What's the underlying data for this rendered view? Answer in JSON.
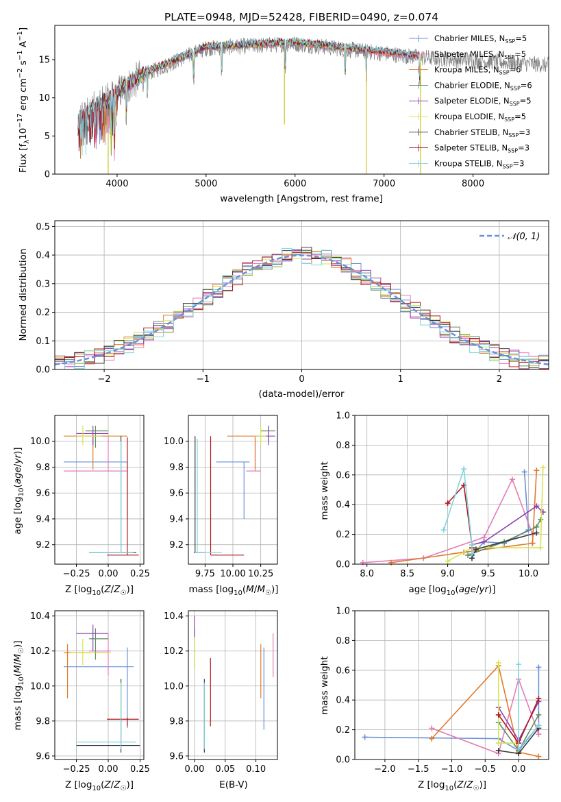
{
  "figure": {
    "title": "PLATE=0948, MJD=52428, FIBERID=0490, z=0.074"
  },
  "chart_data": [
    {
      "id": "spectrum",
      "type": "line",
      "title": "PLATE=0948, MJD=52428, FIBERID=0490, z=0.074",
      "xlabel": "wavelength [Angstrom, rest frame]",
      "ylabel": "Flux [f_λ10^-17 erg cm^-2 s^-1 A^-1]",
      "xlim": [
        3300,
        8850
      ],
      "ylim": [
        0,
        19.5
      ],
      "xticks": [
        4000,
        5000,
        6000,
        7000,
        8000
      ],
      "yticks": [
        0,
        5,
        10,
        15
      ],
      "legend_position": "top-right",
      "series": [
        {
          "name": "Chabrier MILES, N_SSP=5",
          "color": "#6a8fd8",
          "x0": 3560,
          "x1": 7400
        },
        {
          "name": "Salpeter MILES, N_SSP=5",
          "color": "#e47cb6",
          "x0": 3560,
          "x1": 7400
        },
        {
          "name": "Kroupa MILES, N_SSP=6",
          "color": "#e07a2a",
          "x0": 3560,
          "x1": 7400
        },
        {
          "name": "Chabrier ELODIE, N_SSP=6",
          "color": "#5d8c62",
          "x0": 3900,
          "x1": 6800
        },
        {
          "name": "Salpeter ELODIE, N_SSP=5",
          "color": "#8e3fb0",
          "x0": 3900,
          "x1": 6800
        },
        {
          "name": "Kroupa ELODIE, N_SSP=5",
          "color": "#d6e44e",
          "x0": 3900,
          "x1": 6800
        },
        {
          "name": "Chabrier STELIB, N_SSP=3",
          "color": "#3a3a3a",
          "x0": 3560,
          "x1": 7400
        },
        {
          "name": "Salpeter STELIB, N_SSP=3",
          "color": "#b0161c",
          "x0": 3560,
          "x1": 7400
        },
        {
          "name": "Kroupa STELIB, N_SSP=3",
          "color": "#7fd4e0",
          "x0": 3560,
          "x1": 7400
        }
      ],
      "observed_color": "#808080",
      "observed_range": [
        3560,
        8850
      ]
    },
    {
      "id": "residuals",
      "type": "line",
      "xlabel": "(data-model)/error",
      "ylabel": "Normed distribution",
      "xlim": [
        -2.5,
        2.5
      ],
      "ylim": [
        0,
        0.52
      ],
      "xticks": [
        -2,
        -1,
        0,
        1,
        2
      ],
      "yticks": [
        0.0,
        0.1,
        0.2,
        0.3,
        0.4,
        0.5
      ],
      "grid": true,
      "legend": [
        "𝒩(0, 1)"
      ],
      "legend_position": "top-right",
      "bin_width": 0.1
    },
    {
      "id": "age_vs_Z",
      "type": "scatter",
      "xlabel": "Z [log10(Z/Z☉)]",
      "ylabel": "age [log10(age/yr)]",
      "xlim": [
        -0.42,
        0.28
      ],
      "ylim": [
        9.05,
        10.2
      ],
      "xticks": [
        -0.25,
        0.0,
        0.25
      ],
      "xticklabels": [
        "−0.25",
        "0.00",
        "0.25"
      ],
      "yticks": [
        9.2,
        9.4,
        9.6,
        9.8,
        10.0
      ],
      "grid": true
    },
    {
      "id": "age_vs_mass",
      "type": "scatter",
      "xlabel": "mass [log10(M/M☉)]",
      "xlim": [
        9.6,
        10.4
      ],
      "ylim": [
        9.05,
        10.2
      ],
      "xticks": [
        9.75,
        10.0,
        10.25
      ],
      "xticklabels": [
        "9.75",
        "10.00",
        "10.25"
      ],
      "yticks": [
        9.2,
        9.4,
        9.6,
        9.8,
        10.0
      ],
      "grid": true
    },
    {
      "id": "weight_vs_age",
      "type": "line",
      "xlabel": "age [log10(age/yr)]",
      "ylabel": "mass weight",
      "xlim": [
        7.85,
        10.25
      ],
      "ylim": [
        0,
        1.0
      ],
      "xticks": [
        8.0,
        8.5,
        9.0,
        9.5,
        10.0
      ],
      "yticks": [
        0.0,
        0.2,
        0.4,
        0.6,
        0.8,
        1.0
      ],
      "grid": true,
      "series": [
        {
          "color": "#6a8fd8",
          "x": [
            9.3,
            9.45,
            9.7,
            10.0,
            9.95
          ],
          "y": [
            0.06,
            0.15,
            0.14,
            0.23,
            0.62
          ]
        },
        {
          "color": "#e47cb6",
          "x": [
            7.95,
            8.7,
            9.45,
            9.8,
            10.05
          ],
          "y": [
            0.01,
            0.04,
            0.18,
            0.57,
            0.2
          ]
        },
        {
          "color": "#e07a2a",
          "x": [
            8.3,
            9.2,
            10.05,
            10.1,
            10.05
          ],
          "y": [
            0.01,
            0.08,
            0.14,
            0.63,
            0.14
          ]
        },
        {
          "color": "#5d8c62",
          "x": [
            9.25,
            9.7,
            10.1,
            10.15
          ],
          "y": [
            0.06,
            0.15,
            0.25,
            0.3
          ]
        },
        {
          "color": "#8e3fb0",
          "x": [
            9.3,
            9.45,
            10.1,
            10.18
          ],
          "y": [
            0.13,
            0.15,
            0.39,
            0.35
          ]
        },
        {
          "color": "#d6e44e",
          "x": [
            9.0,
            9.3,
            10.15,
            10.18
          ],
          "y": [
            0.02,
            0.11,
            0.11,
            0.65
          ]
        },
        {
          "color": "#3a3a3a",
          "x": [
            9.3,
            9.35,
            10.1
          ],
          "y": [
            0.04,
            0.1,
            0.21
          ]
        },
        {
          "color": "#b0161c",
          "x": [
            9.0,
            9.2,
            9.3,
            9.3
          ],
          "y": [
            0.41,
            0.53,
            0.13,
            0.11
          ]
        },
        {
          "color": "#7fd4e0",
          "x": [
            8.95,
            9.2,
            9.3,
            9.3
          ],
          "y": [
            0.23,
            0.64,
            0.13,
            0.07
          ]
        }
      ]
    },
    {
      "id": "mass_vs_Z",
      "type": "scatter",
      "xlabel": "Z [log10(Z/Z☉)]",
      "ylabel": "mass [log10(M/M☉)]",
      "xlim": [
        -0.42,
        0.28
      ],
      "ylim": [
        9.58,
        10.43
      ],
      "xticks": [
        -0.25,
        0.0,
        0.25
      ],
      "xticklabels": [
        "−0.25",
        "0.00",
        "0.25"
      ],
      "yticks": [
        9.6,
        9.8,
        10.0,
        10.2,
        10.4
      ],
      "grid": true
    },
    {
      "id": "mass_vs_ebv",
      "type": "scatter",
      "xlabel": "E(B-V)",
      "xlim": [
        -0.01,
        0.135
      ],
      "ylim": [
        9.58,
        10.43
      ],
      "xticks": [
        0.0,
        0.05,
        0.1
      ],
      "xticklabels": [
        "0.00",
        "0.05",
        "0.10"
      ],
      "yticks": [
        9.6,
        9.8,
        10.0,
        10.2,
        10.4
      ],
      "grid": true
    },
    {
      "id": "weight_vs_Z",
      "type": "line",
      "xlabel": "Z [log10(Z/Z☉)]",
      "ylabel": "mass weight",
      "xlim": [
        -2.45,
        0.45
      ],
      "ylim": [
        0,
        1.0
      ],
      "xticks": [
        -2.0,
        -1.5,
        -1.0,
        -0.5,
        0.0
      ],
      "xticklabels": [
        "−2.0",
        "−1.5",
        "−1.0",
        "−0.5",
        "0.0"
      ],
      "yticks": [
        0.0,
        0.2,
        0.4,
        0.6,
        0.8,
        1.0
      ],
      "grid": true,
      "series": [
        {
          "color": "#6a8fd8",
          "x": [
            -2.3,
            -0.3,
            0.0,
            0.3,
            0.3
          ],
          "y": [
            0.15,
            0.14,
            0.06,
            0.23,
            0.62
          ]
        },
        {
          "color": "#e47cb6",
          "x": [
            -1.3,
            -0.3,
            0.0,
            0.3
          ],
          "y": [
            0.21,
            0.04,
            0.54,
            0.17
          ]
        },
        {
          "color": "#e07a2a",
          "x": [
            -1.3,
            -0.3,
            0.0,
            0.3
          ],
          "y": [
            0.14,
            0.63,
            0.05,
            0.02
          ]
        },
        {
          "color": "#5d8c62",
          "x": [
            -0.3,
            0.0,
            0.3
          ],
          "y": [
            0.25,
            0.06,
            0.3
          ]
        },
        {
          "color": "#8e3fb0",
          "x": [
            -0.3,
            0.0,
            0.3
          ],
          "y": [
            0.35,
            0.13,
            0.39
          ]
        },
        {
          "color": "#d6e44e",
          "x": [
            -0.3,
            -0.3,
            0.0
          ],
          "y": [
            0.65,
            0.11,
            0.11
          ]
        },
        {
          "color": "#3a3a3a",
          "x": [
            -0.3,
            0.0,
            0.3
          ],
          "y": [
            0.06,
            0.04,
            0.21
          ]
        },
        {
          "color": "#b0161c",
          "x": [
            -0.3,
            0.0,
            0.3
          ],
          "y": [
            0.3,
            0.11,
            0.41
          ]
        },
        {
          "color": "#7fd4e0",
          "x": [
            0.0,
            0.0,
            0.3
          ],
          "y": [
            0.64,
            0.07,
            0.23
          ]
        }
      ]
    }
  ]
}
